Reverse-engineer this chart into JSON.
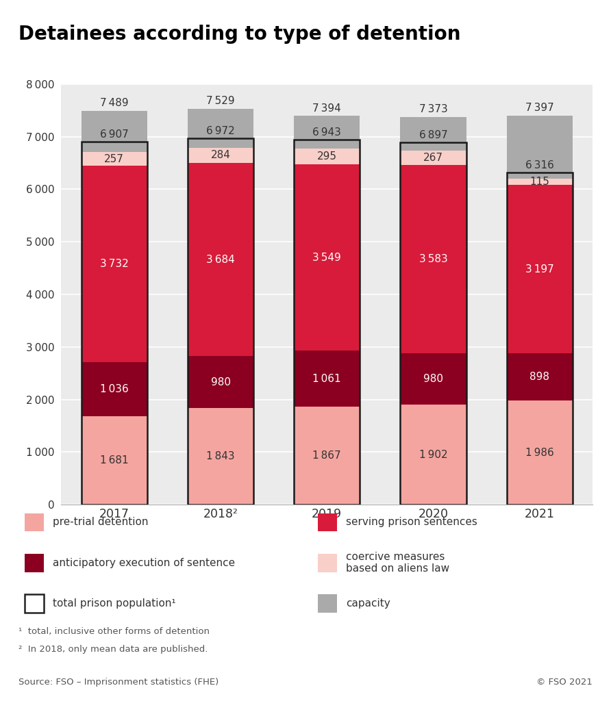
{
  "title": "Detainees according to type of detention",
  "years": [
    "2017",
    "2018²",
    "2019",
    "2020",
    "2021"
  ],
  "pre_trial": [
    1681,
    1843,
    1867,
    1902,
    1986
  ],
  "anticipatory": [
    1036,
    980,
    1061,
    980,
    898
  ],
  "serving": [
    3732,
    3684,
    3549,
    3583,
    3197
  ],
  "coercive": [
    257,
    284,
    295,
    267,
    115
  ],
  "total_population": [
    6907,
    6972,
    6943,
    6897,
    6316
  ],
  "capacity": [
    7489,
    7529,
    7394,
    7373,
    7397
  ],
  "color_pre_trial": "#F4A5A0",
  "color_anticipatory": "#8B0020",
  "color_serving": "#D81B3A",
  "color_coercive": "#F9CFC9",
  "color_capacity": "#AAAAAA",
  "color_total_outline": "#1A1A1A",
  "ylim": [
    0,
    8000
  ],
  "yticks": [
    0,
    1000,
    2000,
    3000,
    4000,
    5000,
    6000,
    7000,
    8000
  ],
  "background_color": "#EBEBEB",
  "footnote1": "¹  total, inclusive other forms of detention",
  "footnote2": "²  In 2018, only mean data are published.",
  "source": "Source: FSO – Imprisonment statistics (FHE)",
  "copyright": "© FSO 2021"
}
